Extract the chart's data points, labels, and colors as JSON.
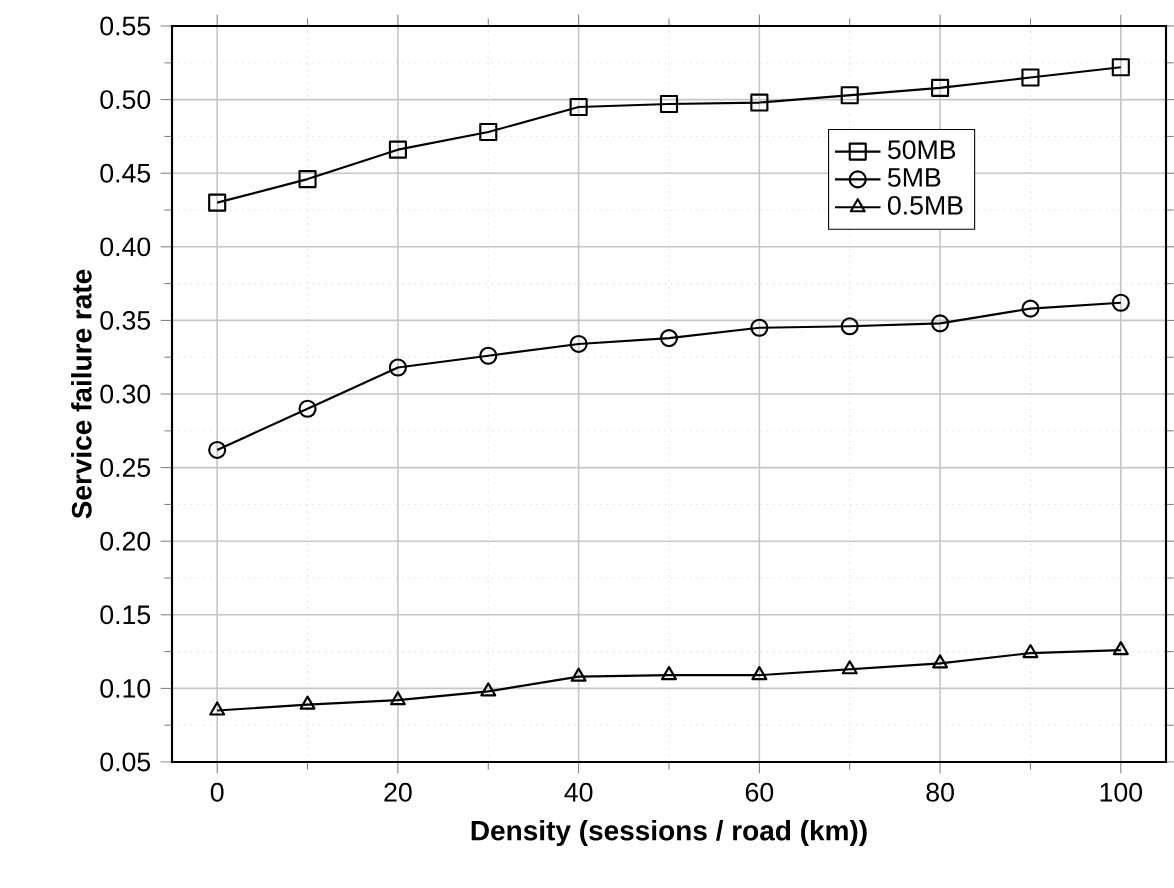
{
  "chart_data": {
    "type": "line",
    "xlabel": "Density (sessions / road (km))",
    "ylabel": "Service failure rate",
    "x": [
      0,
      10,
      20,
      30,
      40,
      50,
      60,
      70,
      80,
      90,
      100
    ],
    "series": [
      {
        "name": "50MB",
        "color": "#000000",
        "marker": "square",
        "values": [
          0.43,
          0.446,
          0.466,
          0.478,
          0.495,
          0.497,
          0.498,
          0.503,
          0.508,
          0.515,
          0.522
        ]
      },
      {
        "name": "5MB",
        "color": "#000000",
        "marker": "circle",
        "values": [
          0.262,
          0.29,
          0.318,
          0.326,
          0.334,
          0.338,
          0.345,
          0.346,
          0.348,
          0.358,
          0.362
        ]
      },
      {
        "name": "0.5MB",
        "color": "#000000",
        "marker": "triangle",
        "values": [
          0.085,
          0.089,
          0.092,
          0.098,
          0.108,
          0.109,
          0.109,
          0.113,
          0.117,
          0.124,
          0.126
        ]
      }
    ],
    "xlim": [
      -5,
      105
    ],
    "xticks": [
      0,
      20,
      40,
      60,
      80,
      100
    ],
    "ylim": [
      0.05,
      0.55
    ],
    "yticks": [
      {
        "value": 0.05,
        "label": "0.05"
      },
      {
        "value": 0.1,
        "label": "0.10"
      },
      {
        "value": 0.15,
        "label": "0.15"
      },
      {
        "value": 0.2,
        "label": "0.20"
      },
      {
        "value": 0.25,
        "label": "0.25"
      },
      {
        "value": 0.3,
        "label": "0.30"
      },
      {
        "value": 0.35,
        "label": "0.35"
      },
      {
        "value": 0.4,
        "label": "0.40"
      },
      {
        "value": 0.45,
        "label": "0.45"
      },
      {
        "value": 0.5,
        "label": "0.50"
      },
      {
        "value": 0.55,
        "label": "0.55"
      }
    ],
    "grid": true,
    "legend": "top right",
    "line_style": "solid"
  }
}
